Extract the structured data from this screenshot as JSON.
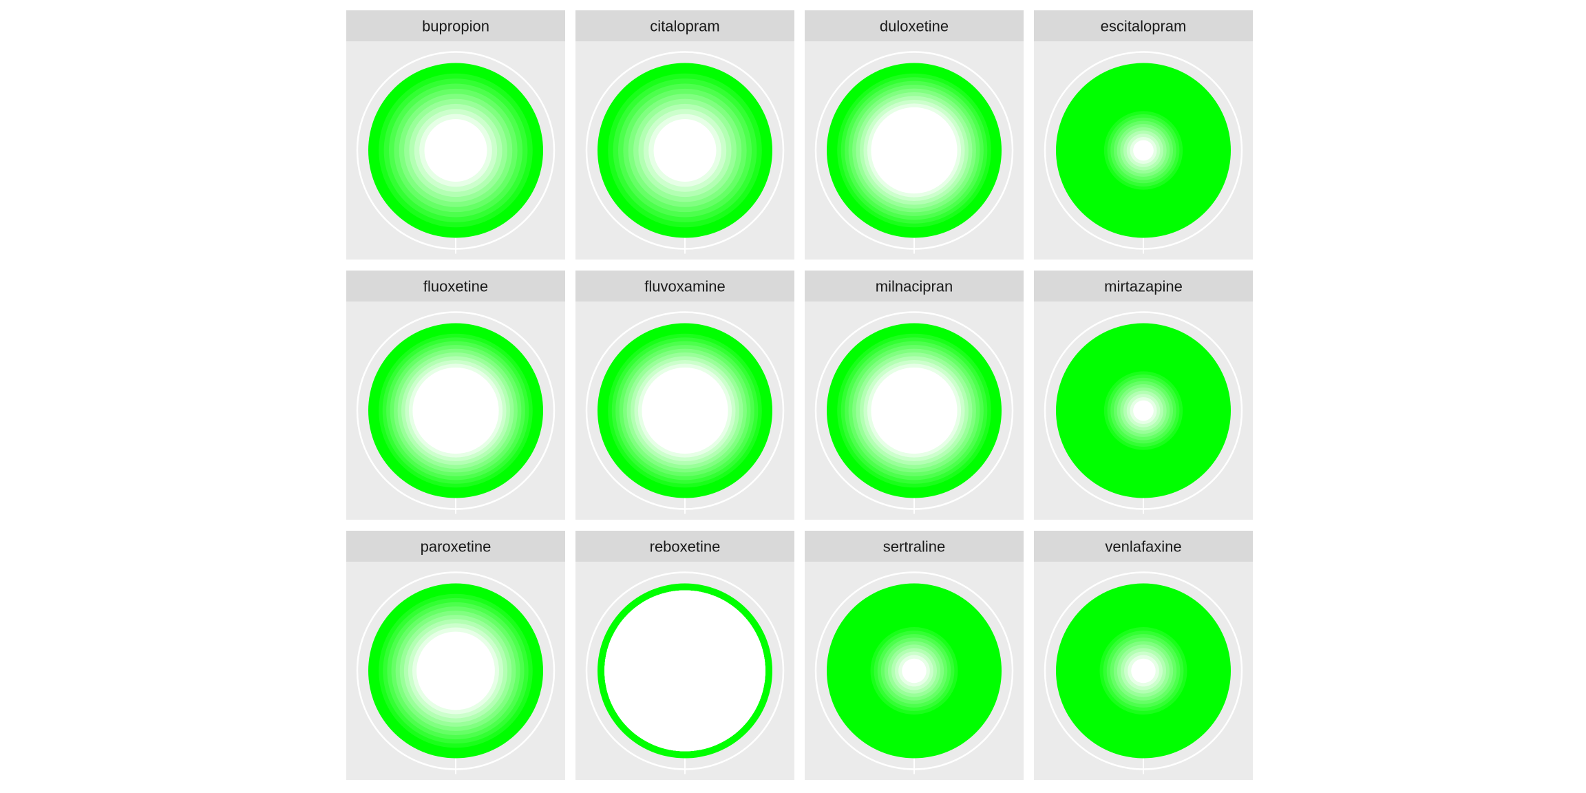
{
  "chart_data": {
    "type": "radial-heatmap",
    "layout": {
      "rows": 3,
      "cols": 4
    },
    "grid": true,
    "colors": {
      "low": "#ffffff",
      "high": "#00ff00",
      "panel_bg": "#ebebeb",
      "strip_bg": "#d9d9d9",
      "grid_line": "#ffffff"
    },
    "levels": 10,
    "panels": [
      {
        "label": "bupropion",
        "white_fraction": 0.3,
        "ring_fraction": 0.12
      },
      {
        "label": "citalopram",
        "white_fraction": 0.3,
        "ring_fraction": 0.12
      },
      {
        "label": "duloxetine",
        "white_fraction": 0.45,
        "ring_fraction": 0.12
      },
      {
        "label": "escitalopram",
        "white_fraction": 0.08,
        "ring_fraction": 0.55
      },
      {
        "label": "fluoxetine",
        "white_fraction": 0.45,
        "ring_fraction": 0.12
      },
      {
        "label": "fluvoxamine",
        "white_fraction": 0.45,
        "ring_fraction": 0.12
      },
      {
        "label": "milnacipran",
        "white_fraction": 0.45,
        "ring_fraction": 0.12
      },
      {
        "label": "mirtazapine",
        "white_fraction": 0.08,
        "ring_fraction": 0.55
      },
      {
        "label": "paroxetine",
        "white_fraction": 0.4,
        "ring_fraction": 0.12
      },
      {
        "label": "reboxetine",
        "white_fraction": 0.92,
        "ring_fraction": 0.08
      },
      {
        "label": "sertraline",
        "white_fraction": 0.1,
        "ring_fraction": 0.5
      },
      {
        "label": "venlafaxine",
        "white_fraction": 0.1,
        "ring_fraction": 0.5
      }
    ]
  }
}
